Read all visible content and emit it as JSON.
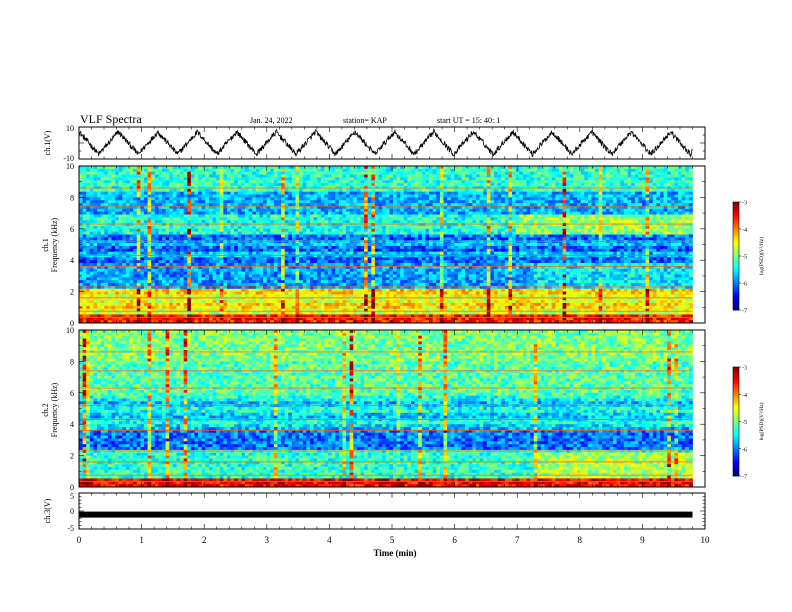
{
  "header": {
    "title": "VLF Spectra",
    "date": "Jan. 24, 2022",
    "station": "station= KAP",
    "start": "start  UT =  15: 40: 1"
  },
  "chart_data": [
    {
      "type": "line",
      "panel": "ch1-waveform",
      "ylabel": "ch.1(V)",
      "ylim": [
        -10,
        10
      ],
      "yticks": [
        10,
        -10
      ],
      "xlim": [
        0,
        10
      ],
      "description_values": {
        "period_min": 0.63,
        "amplitude_V": 7,
        "offset_V": 0,
        "end_min": 9.8
      }
    },
    {
      "type": "heatmap",
      "panel": "ch1-spectrogram",
      "ylabel": "ch.1",
      "ylabel2": "Frequency  (kHz)",
      "ylim": [
        0,
        10
      ],
      "yticks": [
        0,
        2,
        4,
        6,
        8,
        10
      ],
      "xlim": [
        0,
        10
      ],
      "data_end_min": 9.8,
      "colorbar": {
        "label": "log(PSD)(V²/Hz)",
        "range": [
          -7,
          -3
        ],
        "ticks": [
          -3,
          -4,
          -5,
          -6,
          -7
        ]
      }
    },
    {
      "type": "heatmap",
      "panel": "ch2-spectrogram",
      "ylabel": "ch.2",
      "ylabel2": "Frequency  (kHz)",
      "ylim": [
        0,
        10
      ],
      "yticks": [
        0,
        2,
        4,
        6,
        8,
        10
      ],
      "xlim": [
        0,
        10
      ],
      "data_end_min": 9.8,
      "colorbar": {
        "label": "log(PSD)(V²/Hz)",
        "range": [
          -7,
          -3
        ],
        "ticks": [
          -3,
          -4,
          -5,
          -6,
          -7
        ]
      }
    },
    {
      "type": "line",
      "panel": "ch3-waveform",
      "ylabel": "ch.3(V)",
      "ylim": [
        -5,
        5
      ],
      "yticks": [
        5,
        0,
        -5
      ],
      "xlim": [
        0,
        10
      ],
      "xticks": [
        0,
        1,
        2,
        3,
        4,
        5,
        6,
        7,
        8,
        9,
        10
      ],
      "xlabel": "Time  (min)",
      "description_values": {
        "level_V": -1,
        "end_min": 9.8
      }
    }
  ]
}
